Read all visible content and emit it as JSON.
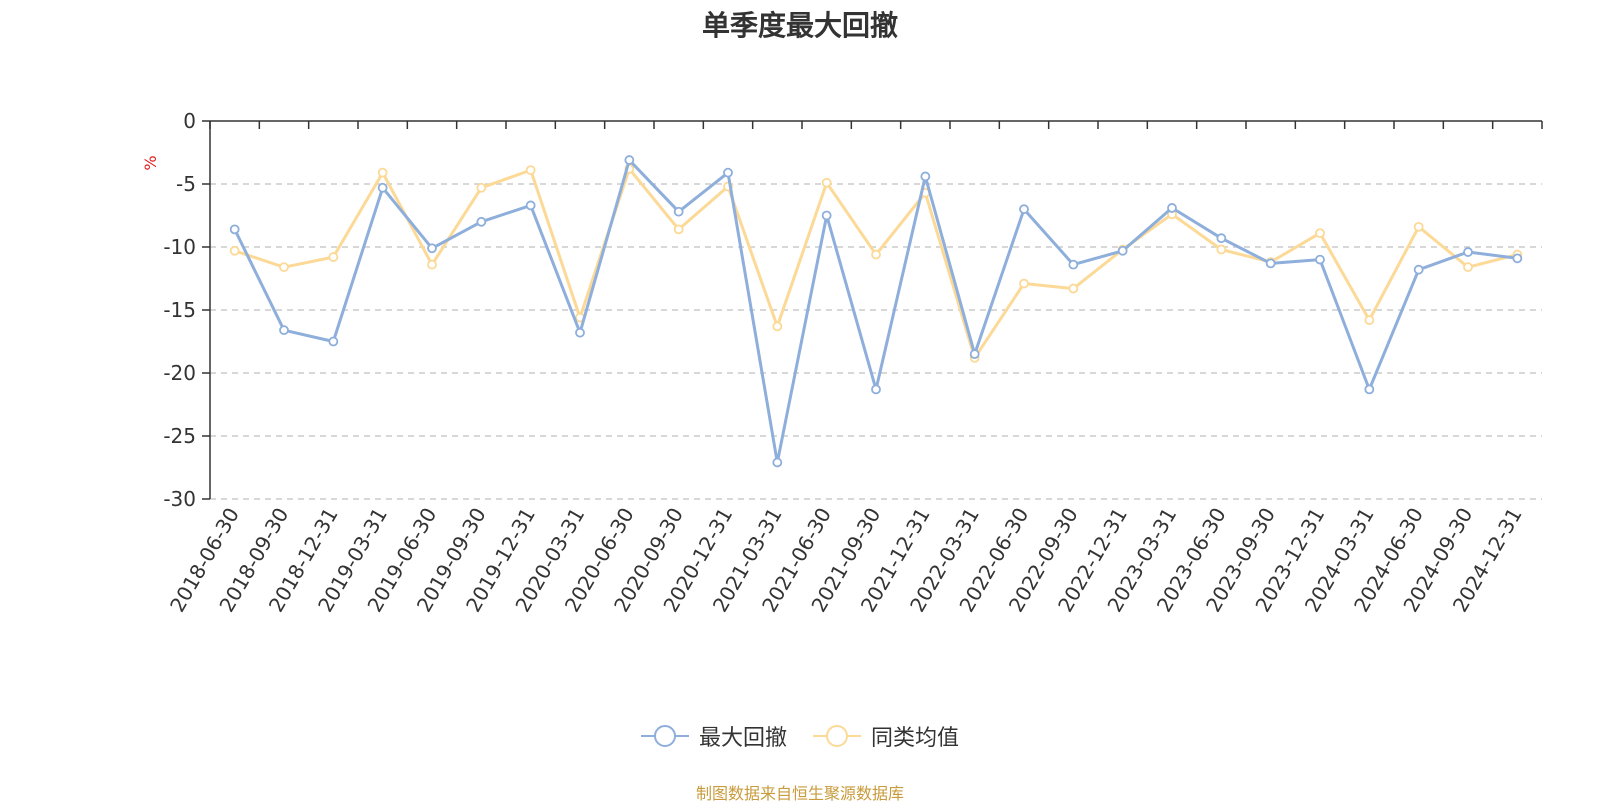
{
  "chart_data": {
    "type": "line",
    "title": "单季度最大回撤",
    "ylabel": "%",
    "xlabel": "",
    "ylim": [
      -30,
      0
    ],
    "y_ticks": [
      0,
      -5,
      -10,
      -15,
      -20,
      -25,
      -30
    ],
    "grid": true,
    "legend_position": "bottom",
    "categories": [
      "2018-06-30",
      "2018-09-30",
      "2018-12-31",
      "2019-03-31",
      "2019-06-30",
      "2019-09-30",
      "2019-12-31",
      "2020-03-31",
      "2020-06-30",
      "2020-09-30",
      "2020-12-31",
      "2021-03-31",
      "2021-06-30",
      "2021-09-30",
      "2021-12-31",
      "2022-03-31",
      "2022-06-30",
      "2022-09-30",
      "2022-12-31",
      "2023-03-31",
      "2023-06-30",
      "2023-09-30",
      "2023-12-31",
      "2024-03-31",
      "2024-06-30",
      "2024-09-30",
      "2024-12-31"
    ],
    "series": [
      {
        "name": "最大回撤",
        "color": "#8eaedb",
        "values": [
          -8.6,
          -16.6,
          -17.5,
          -5.3,
          -10.1,
          -8.0,
          -6.7,
          -16.8,
          -3.1,
          -7.2,
          -4.1,
          -27.1,
          -7.5,
          -21.3,
          -4.4,
          -18.5,
          -7.0,
          -11.4,
          -10.3,
          -6.9,
          -9.3,
          -11.3,
          -11.0,
          -21.3,
          -11.8,
          -10.4,
          -10.9
        ]
      },
      {
        "name": "同类均值",
        "color": "#fcd996",
        "values": [
          -10.3,
          -11.6,
          -10.8,
          -4.1,
          -11.4,
          -5.3,
          -3.9,
          -15.6,
          -3.8,
          -8.6,
          -5.2,
          -16.3,
          -4.9,
          -10.6,
          -5.7,
          -18.8,
          -12.9,
          -13.3,
          -10.2,
          -7.4,
          -10.2,
          -11.2,
          -8.9,
          -15.8,
          -8.4,
          -11.6,
          -10.6
        ]
      }
    ],
    "source_note": "制图数据来自恒生聚源数据库"
  }
}
